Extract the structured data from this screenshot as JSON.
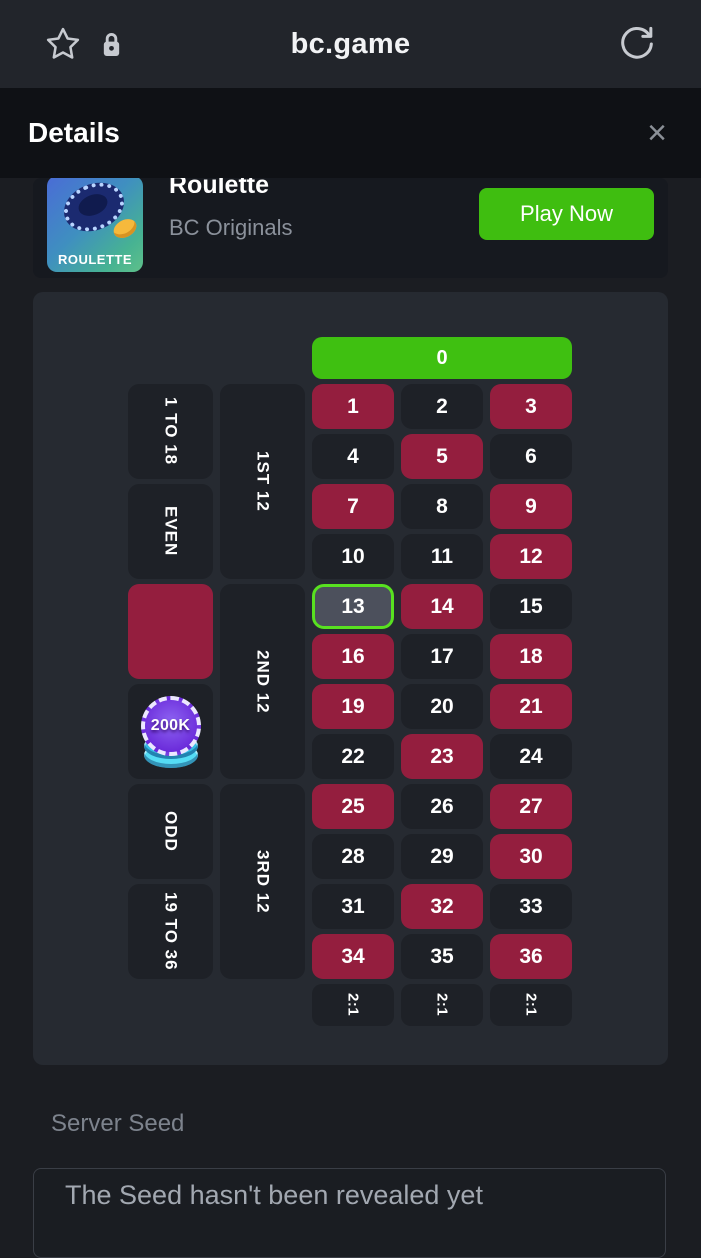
{
  "browser": {
    "title": "bc.game",
    "icons": [
      "star",
      "lock",
      "refresh"
    ]
  },
  "modal": {
    "title": "Details",
    "close_label": "×"
  },
  "game": {
    "title": "Roulette",
    "provider": "BC Originals",
    "play_button": "Play Now",
    "thumb_label": "ROULETTE"
  },
  "table": {
    "zero_label": "0",
    "numbers": [
      1,
      2,
      3,
      4,
      5,
      6,
      7,
      8,
      9,
      10,
      11,
      12,
      13,
      14,
      15,
      16,
      17,
      18,
      19,
      20,
      21,
      22,
      23,
      24,
      25,
      26,
      27,
      28,
      29,
      30,
      31,
      32,
      33,
      34,
      35,
      36
    ],
    "red_numbers": [
      1,
      3,
      5,
      7,
      9,
      12,
      14,
      16,
      18,
      19,
      21,
      23,
      25,
      27,
      30,
      32,
      34,
      36
    ],
    "winning_number": 13,
    "outside_left": [
      {
        "label": "1 TO 18"
      },
      {
        "label": "EVEN"
      },
      {
        "label": "",
        "type": "red"
      },
      {
        "label": "",
        "type": "black"
      },
      {
        "label": "ODD"
      },
      {
        "label": "19 TO 36"
      }
    ],
    "dozens": [
      "1ST 12",
      "2ND 12",
      "3RD 12"
    ],
    "column_bets": [
      "2:1",
      "2:1",
      "2:1"
    ],
    "chip_value": "200K"
  },
  "provably_fair": {
    "server_seed_label": "Server Seed",
    "server_seed_value": "The Seed hasn't been revealed yet"
  },
  "colors": {
    "accent_green": "#3fc011",
    "win_border_green": "#58e120",
    "red_cell": "#941e3e",
    "black_cell": "#1e2127",
    "panel_bg": "#262a31",
    "page_bg": "#1b1d22"
  }
}
